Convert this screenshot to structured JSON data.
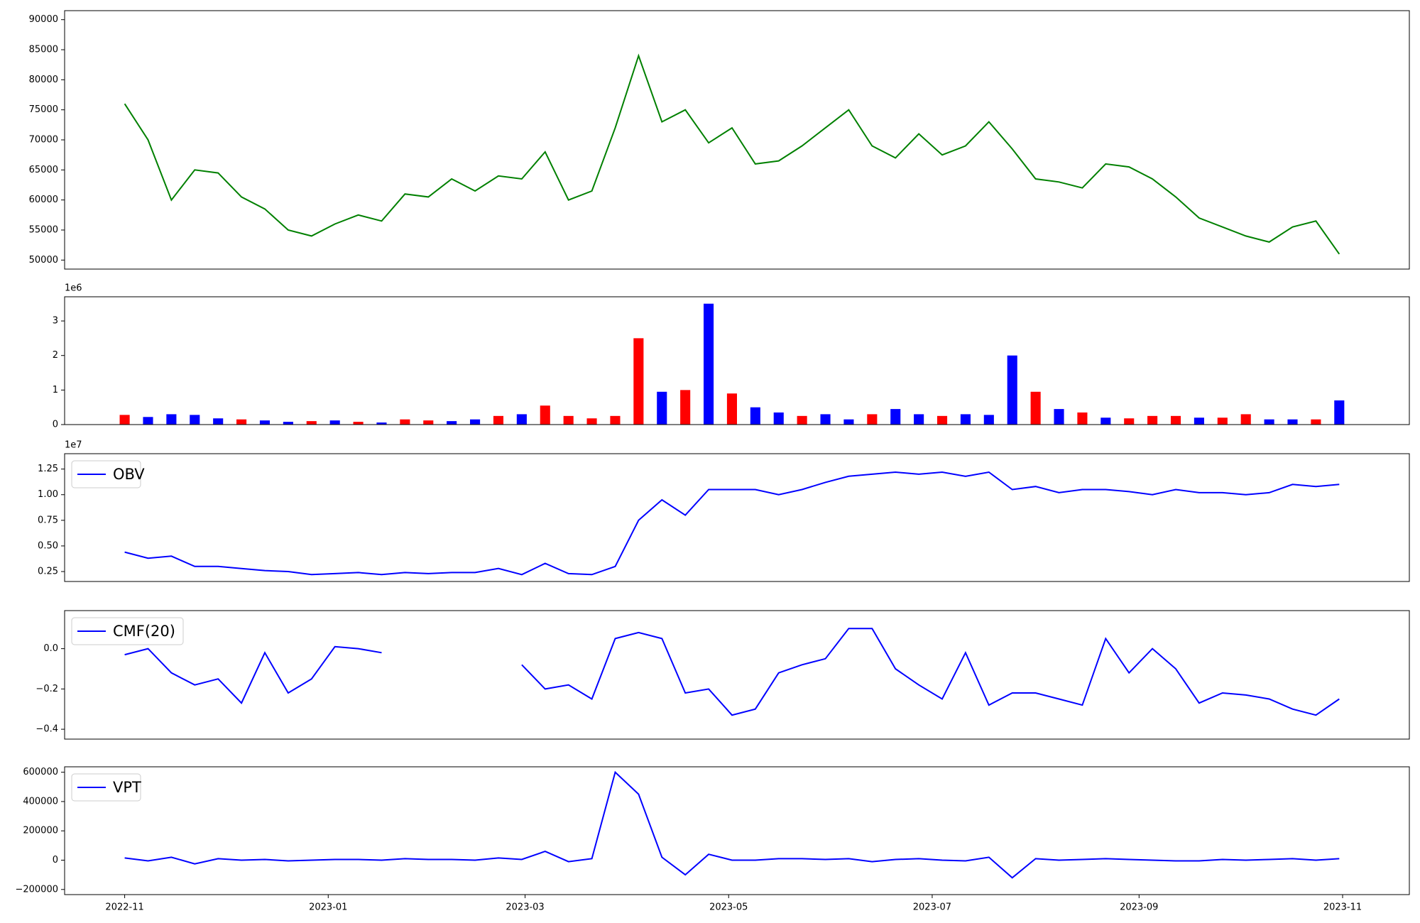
{
  "chart_data": [
    {
      "type": "line",
      "color": "#008000",
      "x": [
        0,
        7,
        14,
        21,
        28,
        35,
        42,
        49,
        56,
        63,
        70,
        77,
        84,
        91,
        98,
        105,
        112,
        119,
        126,
        133,
        140,
        147,
        154,
        161,
        168,
        175,
        182,
        189,
        196,
        203,
        210,
        217,
        224,
        231,
        238,
        245,
        252,
        259,
        266,
        273,
        280,
        287,
        294,
        301,
        308,
        315,
        322,
        329,
        336,
        343,
        350,
        357,
        364
      ],
      "values": [
        76000,
        70000,
        60000,
        65000,
        64500,
        60500,
        58500,
        55000,
        54000,
        56000,
        57500,
        56500,
        61000,
        60500,
        63500,
        61500,
        64000,
        63500,
        68000,
        60000,
        61500,
        72000,
        84000,
        73000,
        75000,
        69500,
        72000,
        66000,
        66500,
        69000,
        72000,
        75000,
        69000,
        67000,
        71000,
        67500,
        69000,
        73000,
        68500,
        63500,
        63000,
        62000,
        66000,
        65500,
        63500,
        60500,
        57000,
        55500,
        54000,
        53000,
        55500,
        56500,
        51000
      ],
      "xlim": [
        -18,
        385
      ],
      "ylim": [
        48500,
        91500
      ],
      "yticks": [
        50000,
        55000,
        60000,
        65000,
        70000,
        75000,
        80000,
        85000,
        90000
      ]
    },
    {
      "type": "bar",
      "y_offset_label": "1e6",
      "x": [
        0,
        7,
        14,
        21,
        28,
        35,
        42,
        49,
        56,
        63,
        70,
        77,
        84,
        91,
        98,
        105,
        112,
        119,
        126,
        133,
        140,
        147,
        154,
        161,
        168,
        175,
        182,
        189,
        196,
        203,
        210,
        217,
        224,
        231,
        238,
        245,
        252,
        259,
        266,
        273,
        280,
        287,
        294,
        301,
        308,
        315,
        322,
        329,
        336,
        343,
        350,
        357,
        364
      ],
      "values": [
        280000,
        220000,
        300000,
        280000,
        180000,
        150000,
        120000,
        80000,
        100000,
        120000,
        80000,
        60000,
        150000,
        120000,
        100000,
        150000,
        250000,
        300000,
        550000,
        250000,
        180000,
        250000,
        2500000,
        950000,
        1000000,
        3500000,
        900000,
        500000,
        350000,
        250000,
        300000,
        150000,
        300000,
        450000,
        300000,
        250000,
        300000,
        280000,
        2000000,
        950000,
        450000,
        350000,
        200000,
        180000,
        250000,
        250000,
        200000,
        200000,
        300000,
        150000,
        150000,
        150000,
        700000
      ],
      "colors": [
        "red",
        "blue",
        "blue",
        "blue",
        "blue",
        "red",
        "blue",
        "blue",
        "red",
        "blue",
        "red",
        "blue",
        "red",
        "red",
        "blue",
        "blue",
        "red",
        "blue",
        "red",
        "red",
        "red",
        "red",
        "red",
        "blue",
        "red",
        "blue",
        "red",
        "blue",
        "blue",
        "red",
        "blue",
        "blue",
        "red",
        "blue",
        "blue",
        "red",
        "blue",
        "blue",
        "blue",
        "red",
        "blue",
        "red",
        "blue",
        "red",
        "red",
        "red",
        "blue",
        "red",
        "red",
        "blue",
        "blue",
        "red",
        "blue"
      ],
      "xlim": [
        -18,
        385
      ],
      "ylim": [
        0,
        3700000
      ],
      "yticks": [
        0,
        {
          "value": 1000000,
          "label": "1"
        },
        {
          "value": 2000000,
          "label": "2"
        },
        {
          "value": 3000000,
          "label": "3"
        }
      ]
    },
    {
      "type": "line",
      "y_offset_label": "1e7",
      "x": [
        0,
        7,
        14,
        21,
        28,
        35,
        42,
        49,
        56,
        63,
        70,
        77,
        84,
        91,
        98,
        105,
        112,
        119,
        126,
        133,
        140,
        147,
        154,
        161,
        168,
        175,
        182,
        189,
        196,
        203,
        210,
        217,
        224,
        231,
        238,
        245,
        252,
        259,
        266,
        273,
        280,
        287,
        294,
        301,
        308,
        315,
        322,
        329,
        336,
        343,
        350,
        357,
        364
      ],
      "series": [
        {
          "name": "OBV",
          "color": "#0000ff",
          "values": [
            4400000,
            3800000,
            4000000,
            3000000,
            3000000,
            2800000,
            2600000,
            2500000,
            2200000,
            2300000,
            2400000,
            2200000,
            2400000,
            2300000,
            2400000,
            2400000,
            2800000,
            2200000,
            3300000,
            2300000,
            2200000,
            3000000,
            7500000,
            9500000,
            8000000,
            10500000,
            10500000,
            10500000,
            10000000,
            10500000,
            11200000,
            11800000,
            12000000,
            12200000,
            12000000,
            12200000,
            11800000,
            12200000,
            10500000,
            10800000,
            10200000,
            10500000,
            10500000,
            10300000,
            10000000,
            10500000,
            10200000,
            10200000,
            10000000,
            10200000,
            11000000,
            10800000,
            11000000
          ]
        }
      ],
      "xlim": [
        -18,
        385
      ],
      "ylim": [
        1530000,
        14000000
      ],
      "legend": "upper left",
      "yticks": [
        {
          "value": 2500000,
          "label": "0.25"
        },
        {
          "value": 5000000,
          "label": "0.50"
        },
        {
          "value": 7500000,
          "label": "0.75"
        },
        {
          "value": 10000000,
          "label": "1.00"
        },
        {
          "value": 12500000,
          "label": "1.25"
        }
      ]
    },
    {
      "type": "line",
      "x": [
        0,
        7,
        14,
        21,
        28,
        35,
        42,
        49,
        56,
        63,
        70,
        77,
        84,
        91,
        98,
        105,
        112,
        119,
        126,
        133,
        140,
        147,
        154,
        161,
        168,
        175,
        182,
        189,
        196,
        203,
        210,
        217,
        224,
        231,
        238,
        245,
        252,
        259,
        266,
        273,
        280,
        287,
        294,
        301,
        308,
        315,
        322,
        329,
        336,
        343,
        350,
        357,
        364
      ],
      "series": [
        {
          "name": "CMF(20)",
          "color": "#0000ff",
          "values": [
            -0.03,
            0.0,
            -0.12,
            -0.18,
            -0.15,
            -0.27,
            -0.02,
            -0.22,
            -0.15,
            0.01,
            0.0,
            -0.02,
            null,
            null,
            null,
            null,
            null,
            -0.08,
            -0.2,
            -0.18,
            -0.25,
            0.05,
            0.08,
            0.05,
            -0.22,
            -0.2,
            -0.33,
            -0.3,
            -0.12,
            -0.08,
            -0.05,
            0.1,
            0.1,
            -0.1,
            -0.18,
            -0.25,
            -0.02,
            -0.28,
            -0.22,
            -0.22,
            -0.25,
            -0.28,
            0.05,
            -0.12,
            0.0,
            -0.1,
            -0.27,
            -0.22,
            -0.23,
            -0.25,
            -0.3,
            -0.33,
            -0.25
          ]
        }
      ],
      "xlim": [
        -18,
        385
      ],
      "ylim": [
        -0.449,
        0.189
      ],
      "legend": "upper left",
      "yticks": [
        {
          "value": -0.4,
          "label": "−0.4"
        },
        {
          "value": -0.2,
          "label": "−0.2"
        },
        {
          "value": 0,
          "label": "0.0"
        }
      ]
    },
    {
      "type": "line",
      "x": [
        0,
        7,
        14,
        21,
        28,
        35,
        42,
        49,
        56,
        63,
        70,
        77,
        84,
        91,
        98,
        105,
        112,
        119,
        126,
        133,
        140,
        147,
        154,
        161,
        168,
        175,
        182,
        189,
        196,
        203,
        210,
        217,
        224,
        231,
        238,
        245,
        252,
        259,
        266,
        273,
        280,
        287,
        294,
        301,
        308,
        315,
        322,
        329,
        336,
        343,
        350,
        357,
        364
      ],
      "series": [
        {
          "name": "VPT",
          "color": "#0000ff",
          "values": [
            15000,
            -5000,
            20000,
            -25000,
            10000,
            0,
            5000,
            -5000,
            0,
            5000,
            5000,
            0,
            10000,
            5000,
            5000,
            0,
            15000,
            5000,
            60000,
            -10000,
            10000,
            600000,
            450000,
            20000,
            -100000,
            40000,
            0,
            0,
            10000,
            10000,
            5000,
            10000,
            -10000,
            5000,
            10000,
            0,
            -5000,
            20000,
            -120000,
            10000,
            0,
            5000,
            10000,
            5000,
            0,
            -5000,
            -5000,
            5000,
            0,
            5000,
            10000,
            0,
            10000
          ]
        }
      ],
      "xlim": [
        -18,
        385
      ],
      "ylim": [
        -235000,
        637000
      ],
      "legend": "upper left",
      "yticks": [
        {
          "value": -200000,
          "label": "−200000"
        },
        0,
        200000,
        400000,
        600000
      ],
      "xticks": [
        {
          "value": 0,
          "label": "2022-11"
        },
        {
          "value": 61,
          "label": "2023-01"
        },
        {
          "value": 120,
          "label": "2023-03"
        },
        {
          "value": 181,
          "label": "2023-05"
        },
        {
          "value": 242,
          "label": "2023-07"
        },
        {
          "value": 304,
          "label": "2023-09"
        },
        {
          "value": 365,
          "label": "2023-11"
        }
      ]
    }
  ]
}
